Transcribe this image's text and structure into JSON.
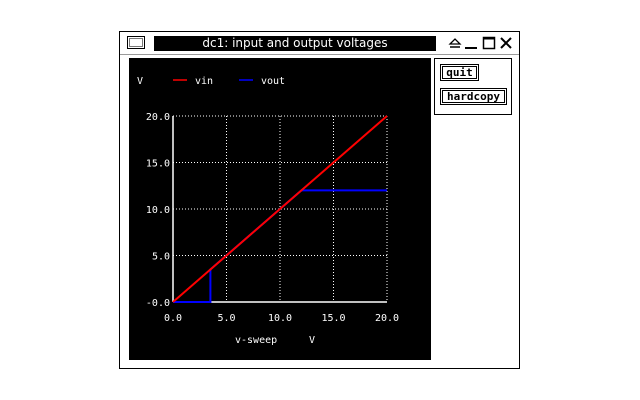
{
  "window": {
    "title": "dc1: input and output voltages",
    "controls": [
      "shade-icon",
      "minimize-icon",
      "maximize-icon",
      "close-icon"
    ]
  },
  "buttons": {
    "quit": "quit",
    "hardcopy": "hardcopy"
  },
  "colors": {
    "plot_background": "#000000",
    "grid": "#ffffff",
    "vin": "#ff0000",
    "vout": "#0000ff"
  },
  "chart_data": {
    "type": "line",
    "xlabel": "v-sweep",
    "xunit": "V",
    "yunit": "V",
    "xlim": [
      0,
      20
    ],
    "ylim": [
      0,
      20
    ],
    "xticks": [
      0,
      5,
      10,
      15,
      20
    ],
    "xtick_labels": [
      "0.0",
      "5.0",
      "10.0",
      "15.0",
      "20.0"
    ],
    "yticks": [
      0,
      5,
      10,
      15,
      20
    ],
    "ytick_labels": [
      "-0.0",
      "5.0",
      "10.0",
      "15.0",
      "20.0"
    ],
    "grid": true,
    "legend_position": "top-left",
    "series": [
      {
        "name": "vin",
        "color": "#ff0000",
        "points": [
          [
            0,
            0
          ],
          [
            20,
            20
          ]
        ]
      },
      {
        "name": "vout",
        "color": "#0000ff",
        "points": [
          [
            0,
            0
          ],
          [
            3.5,
            0
          ],
          [
            3.5,
            3.5
          ],
          [
            12,
            12
          ],
          [
            20,
            12
          ]
        ]
      }
    ]
  }
}
